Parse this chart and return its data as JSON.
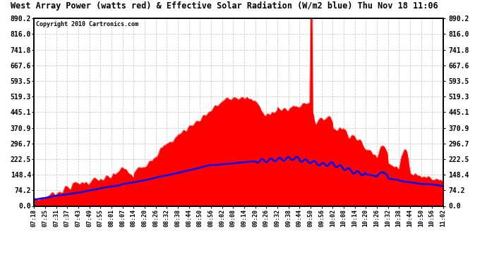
{
  "title": "West Array Power (watts red) & Effective Solar Radiation (W/m2 blue) Thu Nov 18 11:06",
  "copyright": "Copyright 2010 Cartronics.com",
  "ymin": 0.0,
  "ymax": 890.2,
  "yticks": [
    0.0,
    74.2,
    148.4,
    222.5,
    296.7,
    370.9,
    445.1,
    519.3,
    593.5,
    667.6,
    741.8,
    816.0,
    890.2
  ],
  "xtick_labels": [
    "07:18",
    "07:25",
    "07:31",
    "07:37",
    "07:43",
    "07:49",
    "07:55",
    "08:01",
    "08:07",
    "08:14",
    "08:20",
    "08:26",
    "08:32",
    "08:38",
    "08:44",
    "08:50",
    "08:56",
    "09:02",
    "09:08",
    "09:14",
    "09:20",
    "09:26",
    "09:32",
    "09:38",
    "09:44",
    "09:50",
    "09:56",
    "10:02",
    "10:08",
    "10:14",
    "10:20",
    "10:26",
    "10:32",
    "10:38",
    "10:44",
    "10:50",
    "10:56",
    "11:02"
  ],
  "bg_color": "#ffffff",
  "plot_bg_color": "#ffffff",
  "red_color": "#ff0000",
  "blue_color": "#0000ff",
  "grid_color": "#cccccc"
}
